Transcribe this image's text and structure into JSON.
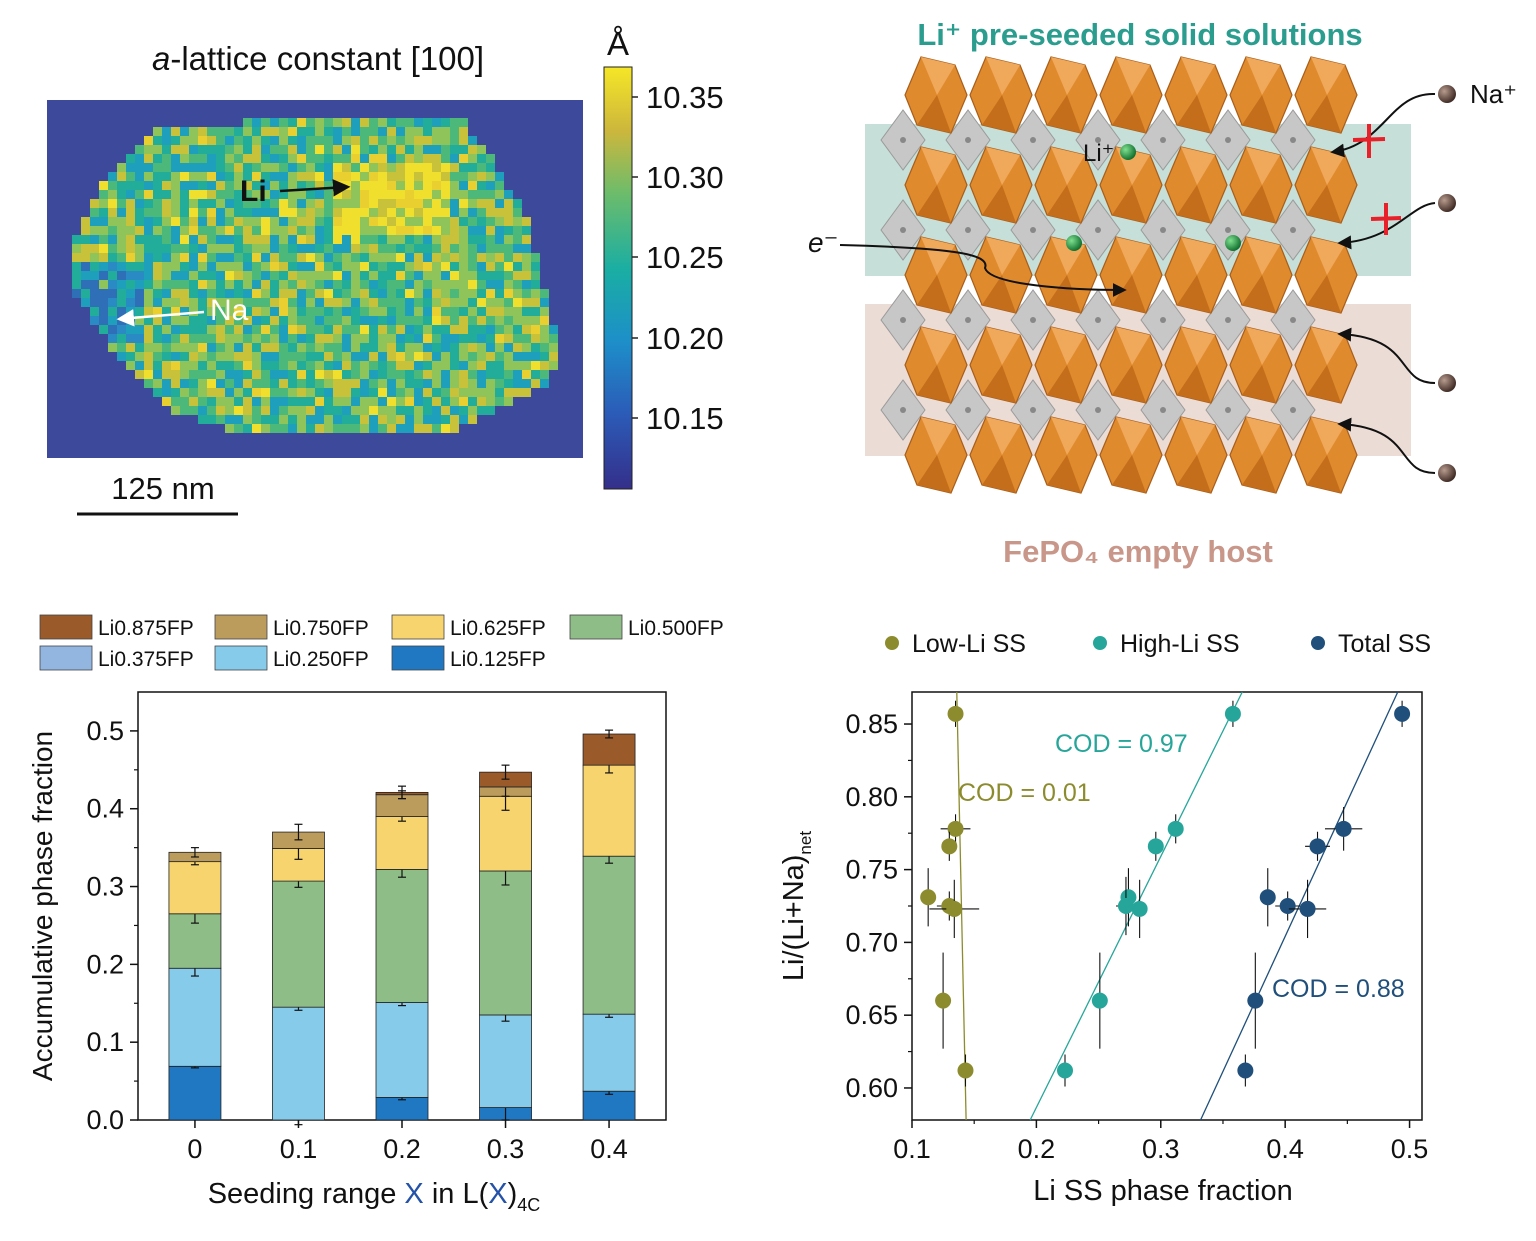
{
  "panel_a": {
    "title_italic": "a",
    "title_rest": "-lattice constant [100]",
    "colorbar_unit": "Å",
    "colorbar_ticks": [
      "10.35",
      "10.30",
      "10.25",
      "10.20",
      "10.15"
    ],
    "colorbar_min": 10.11,
    "colorbar_max": 10.37,
    "label_li": "Li",
    "label_na": "Na",
    "scale_label": "125 nm",
    "colors": {
      "background": "#3d4a9b",
      "low": "#3f4c9c",
      "mid": "#22a39a",
      "high": "#f5dc2a"
    }
  },
  "panel_b": {
    "title": "Li⁺ pre-seeded solid solutions",
    "host_label": "FePO₄ empty host",
    "li_ion_label": "Li⁺",
    "na_ion_label": "Na⁺",
    "electron_label": "e⁻",
    "colors": {
      "title": "#2a9d8f",
      "host": "#c9968a",
      "blocked": "#e8202a",
      "octahedra": "#e0842b",
      "tetrahedra": "#b8b8b8"
    }
  },
  "chart_data": [
    {
      "type": "bar",
      "stacked": true,
      "title": "",
      "xlabel_parts": [
        "Seeding range ",
        "X",
        " in L(",
        "X",
        ")",
        "4C"
      ],
      "ylabel": "Accumulative phase fraction",
      "categories": [
        "0",
        "0.1",
        "0.2",
        "0.3",
        "0.4"
      ],
      "ylim": [
        0,
        0.55
      ],
      "yticks": [
        "0.0",
        "0.1",
        "0.2",
        "0.3",
        "0.4",
        "0.5"
      ],
      "legend": [
        "Li0.875FP",
        "Li0.750FP",
        "Li0.625FP",
        "Li0.500FP",
        "Li0.375FP",
        "Li0.250FP",
        "Li0.125FP"
      ],
      "series": [
        {
          "name": "Li0.125FP",
          "color": "#1f78c1",
          "values": [
            0.069,
            0.0,
            0.029,
            0.016,
            0.037
          ],
          "errors": [
            0.002,
            0.006,
            0.003,
            0.016,
            0.004
          ]
        },
        {
          "name": "Li0.250FP",
          "color": "#86cbea",
          "values": [
            0.126,
            0.145,
            0.122,
            0.119,
            0.099
          ],
          "errors": [
            0.01,
            0.004,
            0.004,
            0.008,
            0.004
          ]
        },
        {
          "name": "Li0.375FP",
          "color": "#93b6e0",
          "values": [
            0.0,
            0.0,
            0.0,
            0.0,
            0.0
          ],
          "errors": [
            0,
            0,
            0,
            0,
            0
          ]
        },
        {
          "name": "Li0.500FP",
          "color": "#8fbd87",
          "values": [
            0.07,
            0.162,
            0.171,
            0.185,
            0.203
          ],
          "errors": [
            0.012,
            0.008,
            0.01,
            0.018,
            0.009
          ]
        },
        {
          "name": "Li0.625FP",
          "color": "#f7d46e",
          "values": [
            0.067,
            0.042,
            0.068,
            0.096,
            0.117
          ],
          "errors": [
            0.004,
            0.014,
            0.006,
            0.018,
            0.01
          ]
        },
        {
          "name": "Li0.750FP",
          "color": "#bc9c5c",
          "values": [
            0.012,
            0.021,
            0.028,
            0.012,
            0.0
          ],
          "errors": [
            0.006,
            0.01,
            0.005,
            0.012,
            0
          ]
        },
        {
          "name": "Li0.875FP",
          "color": "#9a5a2a",
          "values": [
            0.0,
            0.0,
            0.003,
            0.019,
            0.04
          ],
          "errors": [
            0,
            0,
            0.008,
            0.009,
            0.005
          ]
        }
      ]
    },
    {
      "type": "scatter",
      "title": "",
      "xlabel": "Li SS phase fraction",
      "ylabel_main": "Li/(Li+Na)",
      "ylabel_sub": "net",
      "xlim": [
        0.1,
        0.51
      ],
      "ylim": [
        0.578,
        0.872
      ],
      "xticks": [
        "0.1",
        "0.2",
        "0.3",
        "0.4",
        "0.5"
      ],
      "yticks": [
        "0.60",
        "0.65",
        "0.70",
        "0.75",
        "0.80",
        "0.85"
      ],
      "series": [
        {
          "name": "Low-Li SS",
          "color": "#8c8c2e",
          "cod": "COD = 0.01",
          "points": [
            [
              0.135,
              0.857
            ],
            [
              0.135,
              0.778
            ],
            [
              0.13,
              0.766
            ],
            [
              0.113,
              0.731
            ],
            [
              0.13,
              0.725
            ],
            [
              0.134,
              0.723
            ],
            [
              0.125,
              0.66
            ],
            [
              0.143,
              0.612
            ]
          ],
          "xerr": [
            0.004,
            0.012,
            0.006,
            0.006,
            0.01,
            0.02,
            0.004,
            0.004
          ],
          "yerr": [
            0.009,
            0.01,
            0.01,
            0.02,
            0.01,
            0.02,
            0.033,
            0.011
          ],
          "fit": [
            [
              0.136,
              0.872
            ],
            [
              0.1435,
              0.578
            ]
          ]
        },
        {
          "name": "High-Li SS",
          "color": "#26a69a",
          "cod": "COD = 0.97",
          "points": [
            [
              0.358,
              0.857
            ],
            [
              0.312,
              0.778
            ],
            [
              0.296,
              0.766
            ],
            [
              0.274,
              0.731
            ],
            [
              0.272,
              0.725
            ],
            [
              0.283,
              0.723
            ],
            [
              0.251,
              0.66
            ],
            [
              0.223,
              0.612
            ]
          ],
          "xerr": [
            0.006,
            0.006,
            0.006,
            0.006,
            0.008,
            0.006,
            0.005,
            0.005
          ],
          "yerr": [
            0.009,
            0.01,
            0.01,
            0.02,
            0.02,
            0.02,
            0.033,
            0.011
          ],
          "fit": [
            [
              0.195,
              0.578
            ],
            [
              0.3655,
              0.872
            ]
          ]
        },
        {
          "name": "Total SS",
          "color": "#1f4f7a",
          "cod": "COD = 0.88",
          "points": [
            [
              0.494,
              0.857
            ],
            [
              0.447,
              0.778
            ],
            [
              0.426,
              0.766
            ],
            [
              0.386,
              0.731
            ],
            [
              0.402,
              0.725
            ],
            [
              0.418,
              0.723
            ],
            [
              0.376,
              0.66
            ],
            [
              0.368,
              0.612
            ]
          ],
          "xerr": [
            0.005,
            0.015,
            0.01,
            0.006,
            0.01,
            0.015,
            0.004,
            0.004
          ],
          "yerr": [
            0.009,
            0.015,
            0.01,
            0.02,
            0.01,
            0.02,
            0.033,
            0.011
          ],
          "fit": [
            [
              0.332,
              0.578
            ],
            [
              0.4905,
              0.872
            ]
          ]
        }
      ]
    }
  ]
}
